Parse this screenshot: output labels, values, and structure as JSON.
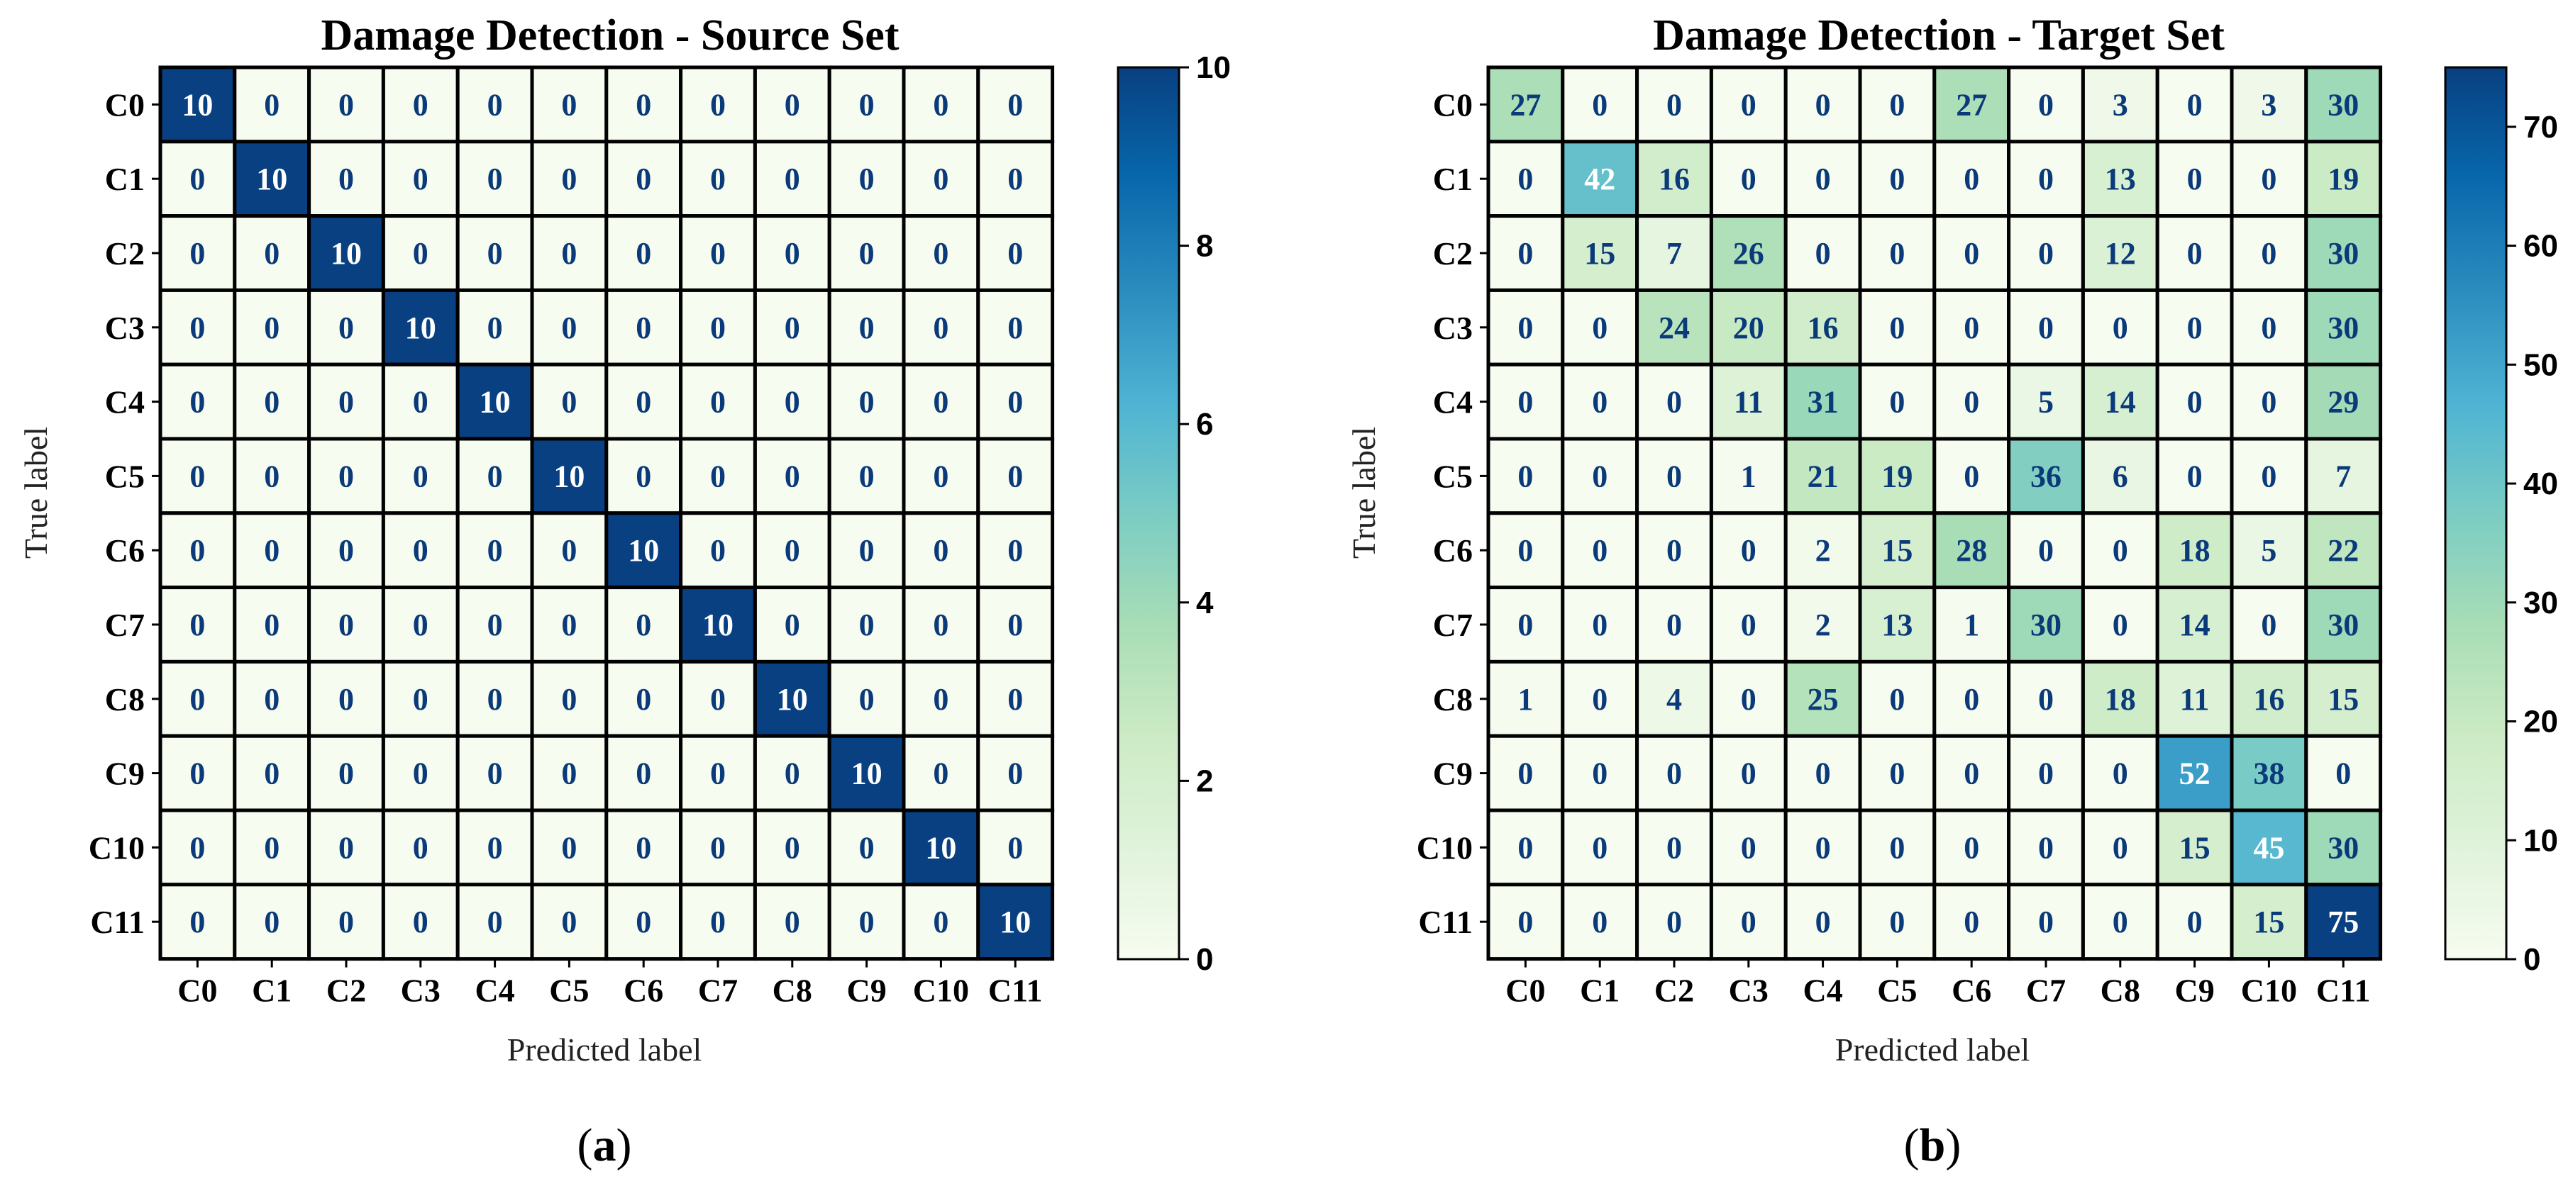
{
  "chart_data": [
    {
      "type": "heatmap",
      "title": "Damage Detection - Source Set",
      "xlabel": "Predicted label",
      "ylabel": "True label",
      "panel_label": "a",
      "x_categories": [
        "C0",
        "C1",
        "C2",
        "C3",
        "C4",
        "C5",
        "C6",
        "C7",
        "C8",
        "C9",
        "C10",
        "C11"
      ],
      "y_categories": [
        "C0",
        "C1",
        "C2",
        "C3",
        "C4",
        "C5",
        "C6",
        "C7",
        "C8",
        "C9",
        "C10",
        "C11"
      ],
      "matrix": [
        [
          10,
          0,
          0,
          0,
          0,
          0,
          0,
          0,
          0,
          0,
          0,
          0
        ],
        [
          0,
          10,
          0,
          0,
          0,
          0,
          0,
          0,
          0,
          0,
          0,
          0
        ],
        [
          0,
          0,
          10,
          0,
          0,
          0,
          0,
          0,
          0,
          0,
          0,
          0
        ],
        [
          0,
          0,
          0,
          10,
          0,
          0,
          0,
          0,
          0,
          0,
          0,
          0
        ],
        [
          0,
          0,
          0,
          0,
          10,
          0,
          0,
          0,
          0,
          0,
          0,
          0
        ],
        [
          0,
          0,
          0,
          0,
          0,
          10,
          0,
          0,
          0,
          0,
          0,
          0
        ],
        [
          0,
          0,
          0,
          0,
          0,
          0,
          10,
          0,
          0,
          0,
          0,
          0
        ],
        [
          0,
          0,
          0,
          0,
          0,
          0,
          0,
          10,
          0,
          0,
          0,
          0
        ],
        [
          0,
          0,
          0,
          0,
          0,
          0,
          0,
          0,
          10,
          0,
          0,
          0
        ],
        [
          0,
          0,
          0,
          0,
          0,
          0,
          0,
          0,
          0,
          10,
          0,
          0
        ],
        [
          0,
          0,
          0,
          0,
          0,
          0,
          0,
          0,
          0,
          0,
          10,
          0
        ],
        [
          0,
          0,
          0,
          0,
          0,
          0,
          0,
          0,
          0,
          0,
          0,
          10
        ]
      ],
      "colorbar": {
        "min": 0,
        "max": 10,
        "ticks": [
          0,
          2,
          4,
          6,
          8,
          10
        ],
        "colormap": "GnBu"
      }
    },
    {
      "type": "heatmap",
      "title": "Damage Detection - Target Set",
      "xlabel": "Predicted label",
      "ylabel": "True label",
      "panel_label": "b",
      "x_categories": [
        "C0",
        "C1",
        "C2",
        "C3",
        "C4",
        "C5",
        "C6",
        "C7",
        "C8",
        "C9",
        "C10",
        "C11"
      ],
      "y_categories": [
        "C0",
        "C1",
        "C2",
        "C3",
        "C4",
        "C5",
        "C6",
        "C7",
        "C8",
        "C9",
        "C10",
        "C11"
      ],
      "matrix": [
        [
          27,
          0,
          0,
          0,
          0,
          0,
          27,
          0,
          3,
          0,
          3,
          30
        ],
        [
          0,
          42,
          16,
          0,
          0,
          0,
          0,
          0,
          13,
          0,
          0,
          19
        ],
        [
          0,
          15,
          7,
          26,
          0,
          0,
          0,
          0,
          12,
          0,
          0,
          30
        ],
        [
          0,
          0,
          24,
          20,
          16,
          0,
          0,
          0,
          0,
          0,
          0,
          30
        ],
        [
          0,
          0,
          0,
          11,
          31,
          0,
          0,
          5,
          14,
          0,
          0,
          29
        ],
        [
          0,
          0,
          0,
          1,
          21,
          19,
          0,
          36,
          6,
          0,
          0,
          7
        ],
        [
          0,
          0,
          0,
          0,
          2,
          15,
          28,
          0,
          0,
          18,
          5,
          22
        ],
        [
          0,
          0,
          0,
          0,
          2,
          13,
          1,
          30,
          0,
          14,
          0,
          30
        ],
        [
          1,
          0,
          4,
          0,
          25,
          0,
          0,
          0,
          18,
          11,
          16,
          15
        ],
        [
          0,
          0,
          0,
          0,
          0,
          0,
          0,
          0,
          0,
          52,
          38,
          0
        ],
        [
          0,
          0,
          0,
          0,
          0,
          0,
          0,
          0,
          0,
          15,
          45,
          30
        ],
        [
          0,
          0,
          0,
          0,
          0,
          0,
          0,
          0,
          0,
          0,
          15,
          75
        ]
      ],
      "colorbar": {
        "min": 0,
        "max": 75,
        "ticks": [
          0,
          10,
          20,
          30,
          40,
          50,
          60,
          70
        ],
        "colormap": "GnBu"
      }
    }
  ],
  "colors": {
    "cell_border": "#000000",
    "text_dark": "#0a3a7a",
    "text_light": "#ffffff",
    "gnbu_stops": [
      "#f7fcf0",
      "#e0f3db",
      "#ccebc5",
      "#a8ddb5",
      "#7bccc4",
      "#4eb3d3",
      "#2b8cbe",
      "#0868ac",
      "#084081"
    ]
  }
}
